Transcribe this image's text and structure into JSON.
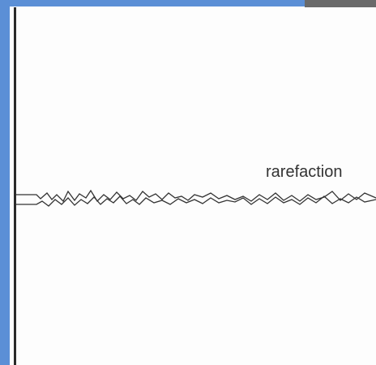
{
  "label": "rarefaction"
}
